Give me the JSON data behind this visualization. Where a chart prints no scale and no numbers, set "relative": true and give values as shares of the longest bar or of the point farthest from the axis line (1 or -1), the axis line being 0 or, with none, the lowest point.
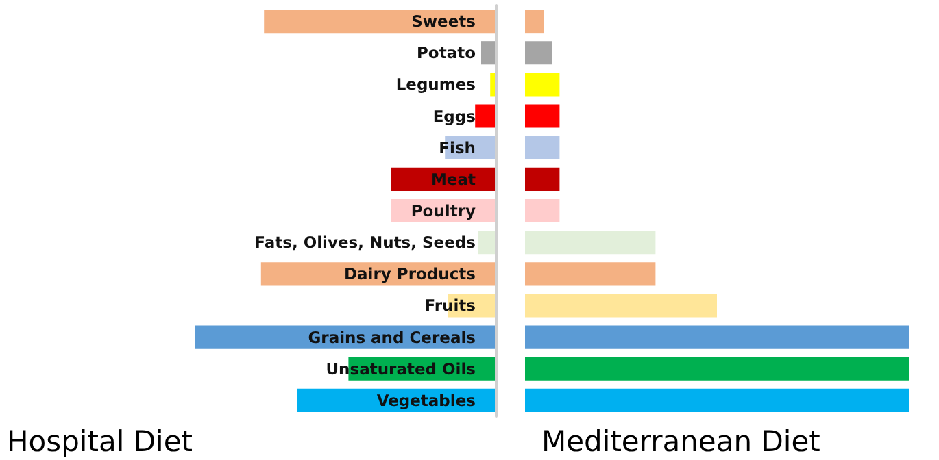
{
  "chart_data": [
    {
      "type": "bar",
      "orientation": "horizontal",
      "relative": true,
      "title": "Hospital Diet",
      "categories": [
        "Sweets",
        "Potato",
        "Legumes",
        "Eggs",
        "Fish",
        "Meat",
        "Poultry",
        "Fats, Olives, Nuts, Seeds",
        "Dairy Products",
        "Fruits",
        "Grains and Cereals",
        "Unsaturated Oils",
        "Vegetables"
      ],
      "values": [
        0.77,
        0.05,
        0.02,
        0.07,
        0.17,
        0.35,
        0.35,
        0.06,
        0.78,
        0.16,
        1,
        0.49,
        0.66
      ],
      "colors": [
        "#f4b183",
        "#a5a5a5",
        "#ffff00",
        "#ff0000",
        "#b4c7e7",
        "#c00000",
        "#ffcccc",
        "#e2efda",
        "#f4b183",
        "#ffe699",
        "#5b9bd5",
        "#00b050",
        "#00b0f0"
      ]
    },
    {
      "type": "bar",
      "orientation": "horizontal",
      "relative": true,
      "title": "Mediterranean Diet",
      "categories": [
        null,
        null,
        null,
        null,
        null,
        null,
        null,
        null,
        null,
        null,
        null,
        null,
        null
      ],
      "values": [
        0.05,
        0.07,
        0.09,
        0.09,
        0.09,
        0.09,
        0.09,
        0.34,
        0.34,
        0.5,
        1,
        1,
        1
      ],
      "colors": [
        "#f4b183",
        "#a5a5a5",
        "#ffff00",
        "#ff0000",
        "#b4c7e7",
        "#c00000",
        "#ffcccc",
        "#e2efda",
        "#f4b183",
        "#ffe699",
        "#5b9bd5",
        "#00b050",
        "#00b0f0"
      ]
    }
  ]
}
